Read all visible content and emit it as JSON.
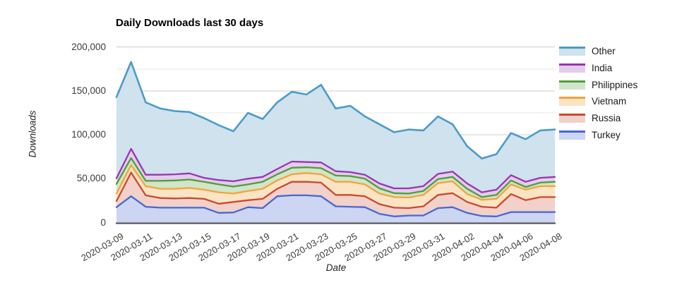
{
  "chart": {
    "title": "Daily Downloads last 30 days",
    "y_axis": {
      "label": "Downloads",
      "tick_labels": [
        "0",
        "50,000",
        "100,000",
        "150,000",
        "200,000"
      ],
      "tick_values": [
        0,
        50000,
        100000,
        150000,
        200000
      ]
    },
    "x_axis": {
      "label": "Date",
      "tick_labels": [
        "2020-03-09",
        "2020-03-11",
        "2020-03-13",
        "2020-03-15",
        "2020-03-17",
        "2020-03-19",
        "2020-03-21",
        "2020-03-23",
        "2020-03-25",
        "2020-03-27",
        "2020-03-29",
        "2020-03-31",
        "2020-04-02",
        "2020-04-04",
        "2020-04-06",
        "2020-04-08"
      ]
    },
    "legend_order": [
      "Other",
      "India",
      "Philippines",
      "Vietnam",
      "Russia",
      "Turkey"
    ],
    "grid_major_color": "#cccccc",
    "grid_minor_color": "#e7e7e7",
    "axis_line_color": "#4c4c4c"
  },
  "chart_data": {
    "type": "area",
    "stacked": true,
    "stack_order": "bottom-to-top",
    "title": "Daily Downloads last 30 days",
    "xlabel": "Date",
    "ylabel": "Downloads",
    "ylim": [
      0,
      200000
    ],
    "grid": true,
    "legend_position": "right",
    "x": [
      "2020-03-09",
      "2020-03-10",
      "2020-03-11",
      "2020-03-12",
      "2020-03-13",
      "2020-03-14",
      "2020-03-15",
      "2020-03-16",
      "2020-03-17",
      "2020-03-18",
      "2020-03-19",
      "2020-03-20",
      "2020-03-21",
      "2020-03-22",
      "2020-03-23",
      "2020-03-24",
      "2020-03-25",
      "2020-03-26",
      "2020-03-27",
      "2020-03-28",
      "2020-03-29",
      "2020-03-30",
      "2020-03-31",
      "2020-04-01",
      "2020-04-02",
      "2020-04-03",
      "2020-04-04",
      "2020-04-05",
      "2020-04-06",
      "2020-04-07",
      "2020-04-08"
    ],
    "series": [
      {
        "name": "Turkey",
        "color": "#4868d1",
        "fill": "#ccd5f1",
        "values": [
          17500,
          30000,
          18000,
          17000,
          17000,
          17000,
          17000,
          11000,
          11500,
          17500,
          16500,
          30000,
          31000,
          31000,
          30000,
          18500,
          18000,
          17500,
          10000,
          7000,
          8000,
          8000,
          16500,
          17500,
          11000,
          7500,
          7000,
          12000,
          12000,
          12000,
          12000
        ]
      },
      {
        "name": "Russia",
        "color": "#cb4a2f",
        "fill": "#f1d1c9",
        "values": [
          7000,
          27000,
          13000,
          11000,
          10500,
          11000,
          10000,
          10500,
          12000,
          8000,
          10500,
          8500,
          15500,
          15500,
          15500,
          13000,
          13500,
          12500,
          11000,
          10000,
          8500,
          10500,
          15000,
          16000,
          12500,
          10500,
          10000,
          20500,
          13500,
          17000,
          17000
        ]
      },
      {
        "name": "Vietnam",
        "color": "#f2a33d",
        "fill": "#fbe4c3",
        "values": [
          8500,
          8500,
          10500,
          10500,
          11000,
          11500,
          10500,
          13000,
          9500,
          10500,
          11500,
          9500,
          8500,
          10000,
          9500,
          15000,
          15000,
          13500,
          12000,
          12000,
          12000,
          13000,
          13500,
          13500,
          9000,
          8000,
          10000,
          11000,
          12000,
          12500,
          12500
        ]
      },
      {
        "name": "Philippines",
        "color": "#4f9d3a",
        "fill": "#d1e5c9",
        "values": [
          11000,
          8000,
          6000,
          9000,
          9500,
          9500,
          9000,
          9000,
          8000,
          7500,
          8000,
          7000,
          7500,
          6500,
          7000,
          7000,
          6500,
          6500,
          6000,
          4500,
          4500,
          4500,
          4500,
          5000,
          6000,
          3000,
          4500,
          4500,
          3000,
          4000,
          5000
        ]
      },
      {
        "name": "India",
        "color": "#9737b2",
        "fill": "#e4cdec",
        "values": [
          6500,
          10500,
          7000,
          7000,
          7000,
          7000,
          4500,
          5000,
          6000,
          6500,
          5500,
          6000,
          7000,
          6000,
          6500,
          5000,
          4500,
          4500,
          5500,
          5500,
          6000,
          5500,
          6000,
          6000,
          6000,
          5500,
          6000,
          6000,
          6000,
          5500,
          5500
        ]
      },
      {
        "name": "Other",
        "color": "#4b9bc7",
        "fill": "#cfe2ee",
        "values": [
          92500,
          99000,
          82500,
          75500,
          72000,
          70000,
          68000,
          62500,
          57000,
          75000,
          66000,
          76000,
          79500,
          77000,
          88500,
          71500,
          75500,
          66500,
          67500,
          64000,
          67000,
          63500,
          65500,
          54000,
          42500,
          38500,
          40500,
          48000,
          48500,
          54000,
          54000
        ]
      }
    ]
  }
}
